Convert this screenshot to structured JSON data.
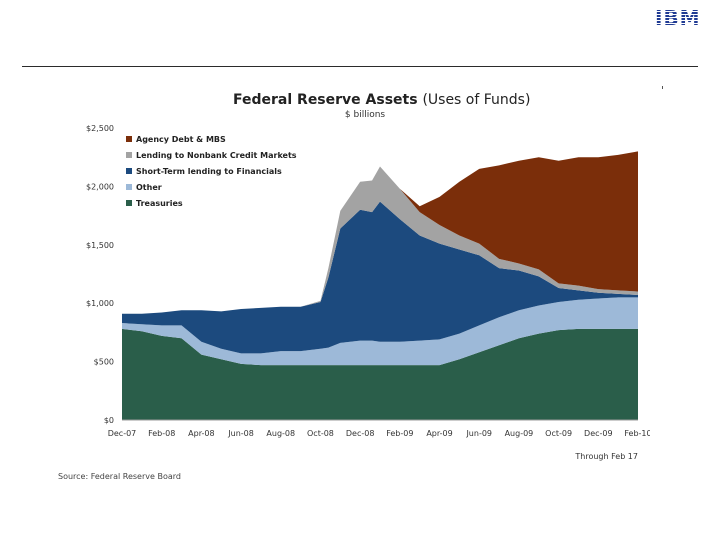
{
  "header": {
    "logo_text": "IBM"
  },
  "source": "Source: Federal Reserve Board",
  "chart_data": {
    "type": "area",
    "stacked": true,
    "title": "Federal Reserve Assets",
    "title_suffix": "(Uses of Funds)",
    "subtitle": "$ billions",
    "note": "Through Feb 17",
    "xlabel": "",
    "ylabel": "",
    "ylim": [
      0,
      2500
    ],
    "yticks": [
      0,
      500,
      1000,
      1500,
      2000,
      2500
    ],
    "ytick_labels": [
      "$0",
      "$500",
      "$1,000",
      "$1,500",
      "$2,000",
      "$2,500"
    ],
    "xtick_labels": [
      "Dec-07",
      "Feb-08",
      "Apr-08",
      "Jun-08",
      "Aug-08",
      "Oct-08",
      "Dec-08",
      "Feb-09",
      "Apr-09",
      "Jun-09",
      "Aug-09",
      "Oct-09",
      "Dec-09",
      "Feb-10"
    ],
    "legend_position": "top-left",
    "x": [
      0,
      0.5,
      1,
      1.5,
      2,
      2.5,
      3,
      3.5,
      4,
      4.5,
      5,
      5.2,
      5.5,
      6,
      6.3,
      6.5,
      7,
      7.5,
      8,
      8.5,
      9,
      9.5,
      10,
      10.5,
      11,
      11.5,
      12,
      12.5,
      13
    ],
    "series": [
      {
        "name": "Treasuries",
        "color": "#2a5e4a",
        "values": [
          780,
          760,
          720,
          700,
          560,
          520,
          480,
          470,
          470,
          470,
          470,
          470,
          470,
          470,
          470,
          470,
          470,
          470,
          470,
          520,
          580,
          640,
          700,
          740,
          770,
          780,
          780,
          780,
          780
        ]
      },
      {
        "name": "Other",
        "color": "#9db9d8",
        "values": [
          50,
          60,
          90,
          110,
          110,
          90,
          90,
          100,
          120,
          120,
          140,
          150,
          190,
          210,
          210,
          200,
          200,
          210,
          220,
          220,
          230,
          240,
          240,
          240,
          240,
          250,
          260,
          270,
          270
        ]
      },
      {
        "name": "Short-Term lending to Financials",
        "color": "#1c4a7e",
        "values": [
          80,
          90,
          110,
          130,
          270,
          320,
          380,
          390,
          380,
          380,
          400,
          600,
          980,
          1120,
          1100,
          1200,
          1050,
          900,
          820,
          720,
          600,
          420,
          340,
          250,
          120,
          80,
          50,
          30,
          20
        ]
      },
      {
        "name": "Lending to Nonbank Credit Markets",
        "color": "#a3a3a3",
        "values": [
          0,
          0,
          0,
          0,
          0,
          0,
          0,
          0,
          0,
          0,
          10,
          80,
          150,
          240,
          270,
          300,
          260,
          200,
          160,
          120,
          100,
          80,
          60,
          60,
          40,
          40,
          30,
          30,
          30
        ]
      },
      {
        "name": "Agency Debt & MBS",
        "color": "#7b2e0a",
        "values": [
          0,
          0,
          0,
          0,
          0,
          0,
          0,
          0,
          0,
          0,
          0,
          0,
          0,
          0,
          0,
          0,
          0,
          50,
          240,
          460,
          640,
          800,
          880,
          960,
          1050,
          1100,
          1130,
          1160,
          1200
        ]
      }
    ]
  }
}
